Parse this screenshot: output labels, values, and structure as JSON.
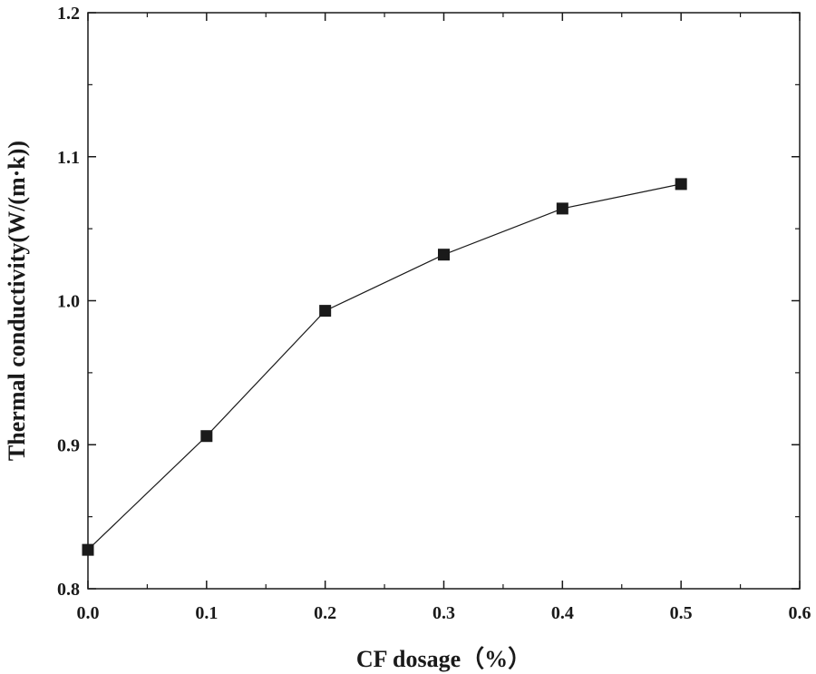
{
  "chart_data": {
    "type": "line",
    "title": "",
    "xlabel": "CF dosage（%）",
    "ylabel": "Thermal conductivity(W/(m·k))",
    "xlim": [
      0.0,
      0.6
    ],
    "ylim": [
      0.8,
      1.2
    ],
    "x_ticks": [
      "0.0",
      "0.1",
      "0.2",
      "0.3",
      "0.4",
      "0.5",
      "0.6"
    ],
    "y_ticks": [
      "0.8",
      "0.9",
      "1.0",
      "1.1",
      "1.2"
    ],
    "grid": false,
    "legend": "none",
    "marker": "square",
    "series": [
      {
        "name": "Thermal conductivity",
        "x": [
          0.0,
          0.1,
          0.2,
          0.3,
          0.4,
          0.5
        ],
        "values": [
          0.827,
          0.906,
          0.993,
          1.032,
          1.064,
          1.081
        ]
      }
    ]
  }
}
